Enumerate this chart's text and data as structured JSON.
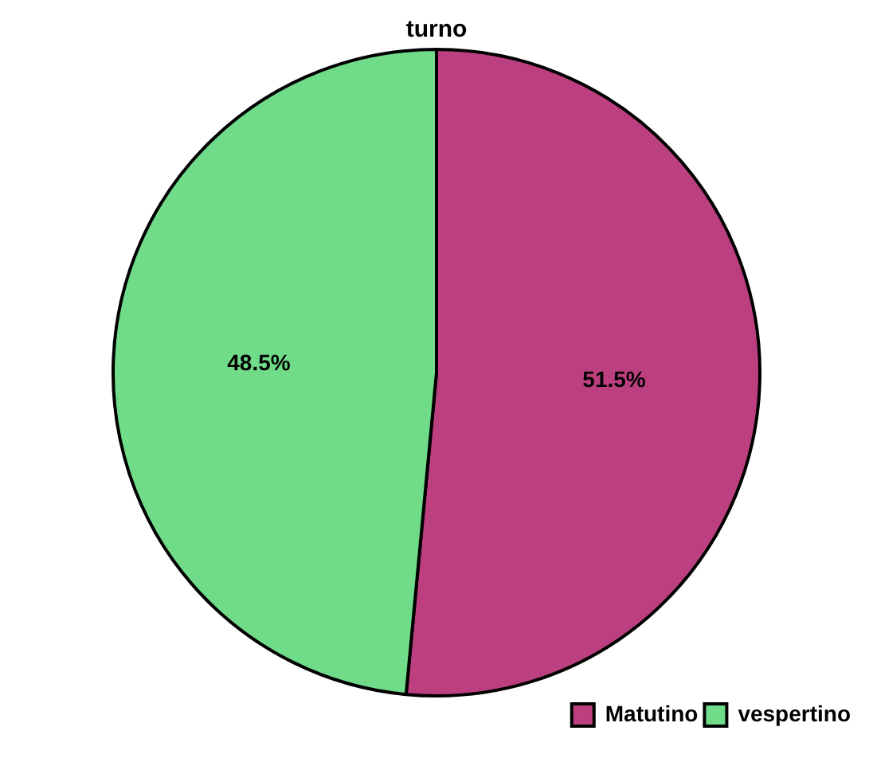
{
  "chart_data": {
    "type": "pie",
    "title": "turno",
    "categories": [
      "Matutino",
      "vespertino"
    ],
    "values": [
      51.5,
      48.5
    ],
    "colors": [
      "#bc4080",
      "#70dc8a"
    ],
    "value_labels": [
      "51.5%",
      "48.5%"
    ],
    "legend": "bottom right"
  }
}
